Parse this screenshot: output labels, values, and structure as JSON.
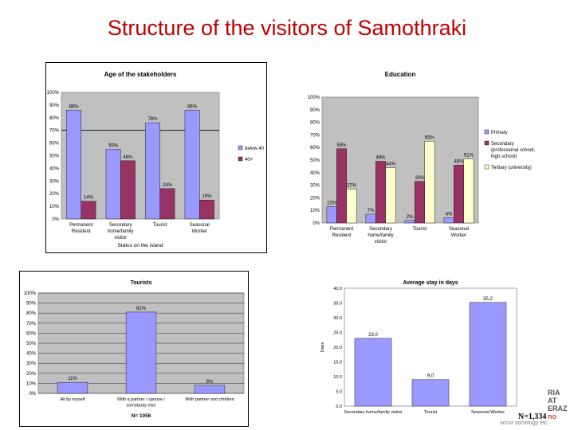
{
  "page": {
    "title": "Structure of the visitors of Samothraki",
    "note": "N=1,334",
    "logo_lines": [
      "RIA",
      "AT",
      "ERAZ",
      "no"
    ],
    "logo_tag": "occur sociology etc"
  },
  "colors": {
    "title": "#c00000",
    "series_blue": "#9999ff",
    "series_maroon": "#993366",
    "series_cream": "#ffffcc",
    "plot_bg": "#c0c0c0",
    "bar_stroke": "#000000"
  },
  "chart_data": [
    {
      "type": "bar",
      "title": "Age of the stakeholders",
      "xlabel": "Status on the island",
      "ylabel": "",
      "ylim": [
        0,
        100
      ],
      "yticks": [
        "0%",
        "10%",
        "20%",
        "30%",
        "40%",
        "50%",
        "60%",
        "70%",
        "80%",
        "90%",
        "100%"
      ],
      "categories": [
        "Permanent Resident",
        "Secondary home/family visitor",
        "Tourist",
        "Seasonal Worker"
      ],
      "series": [
        {
          "name": "below 40",
          "values": [
            86,
            55,
            76,
            86
          ],
          "labels": [
            "86%",
            "55%",
            "76%",
            "86%"
          ]
        },
        {
          "name": "40+",
          "values": [
            14,
            46,
            24,
            15
          ],
          "labels": [
            "14%",
            "46%",
            "24%",
            "15%"
          ]
        }
      ],
      "legend": "right",
      "grid": false
    },
    {
      "type": "bar",
      "title": "Education",
      "xlabel": "",
      "ylabel": "",
      "ylim": [
        0,
        100
      ],
      "yticks": [
        "0%",
        "10%",
        "20%",
        "30%",
        "40%",
        "50%",
        "60%",
        "70%",
        "80%",
        "90%",
        "100%"
      ],
      "categories": [
        "Permanent Resident",
        "Secondary home/family visitor",
        "Tourist",
        "Seasonal Worker"
      ],
      "series": [
        {
          "name": "Primary",
          "values": [
            13,
            7,
            2,
            4
          ],
          "labels": [
            "13%",
            "7%",
            "2%",
            "4%"
          ]
        },
        {
          "name": "Secondary (professional school, high school)",
          "values": [
            59,
            49,
            33,
            46
          ],
          "labels": [
            "59%",
            "49%",
            "33%",
            "46%"
          ]
        },
        {
          "name": "Tertiary (university)",
          "values": [
            27,
            44,
            65,
            51
          ],
          "labels": [
            "27%",
            "44%",
            "65%",
            "51%"
          ]
        }
      ],
      "legend": "right",
      "grid": false
    },
    {
      "type": "bar",
      "title": "Tourists",
      "xlabel": "N= 1056",
      "ylabel": "",
      "ylim": [
        0,
        100
      ],
      "yticks": [
        "0%",
        "10%",
        "20%",
        "30%",
        "40%",
        "50%",
        "60%",
        "70%",
        "80%",
        "90%",
        "100%"
      ],
      "categories": [
        "All by myself",
        "With a partner / spouse / somebody else",
        "With partner and children"
      ],
      "series": [
        {
          "name": "",
          "values": [
            11,
            81,
            8
          ],
          "labels": [
            "11%",
            "81%",
            "8%"
          ]
        }
      ],
      "legend": "none",
      "grid": true
    },
    {
      "type": "bar",
      "title": "Average stay in days",
      "xlabel": "",
      "ylabel": "Days",
      "ylim": [
        0,
        40
      ],
      "yticks": [
        "0.0",
        "5.0",
        "10.0",
        "15.0",
        "20.0",
        "25.0",
        "30.0",
        "35.0",
        "40.0"
      ],
      "categories": [
        "Secondary home/family visitor",
        "Tourist",
        "Seasonal Worker"
      ],
      "series": [
        {
          "name": "",
          "values": [
            23.0,
            9.0,
            35.2
          ],
          "labels": [
            "23,0",
            "9,0",
            "35,2"
          ]
        }
      ],
      "legend": "none",
      "grid": false
    }
  ]
}
